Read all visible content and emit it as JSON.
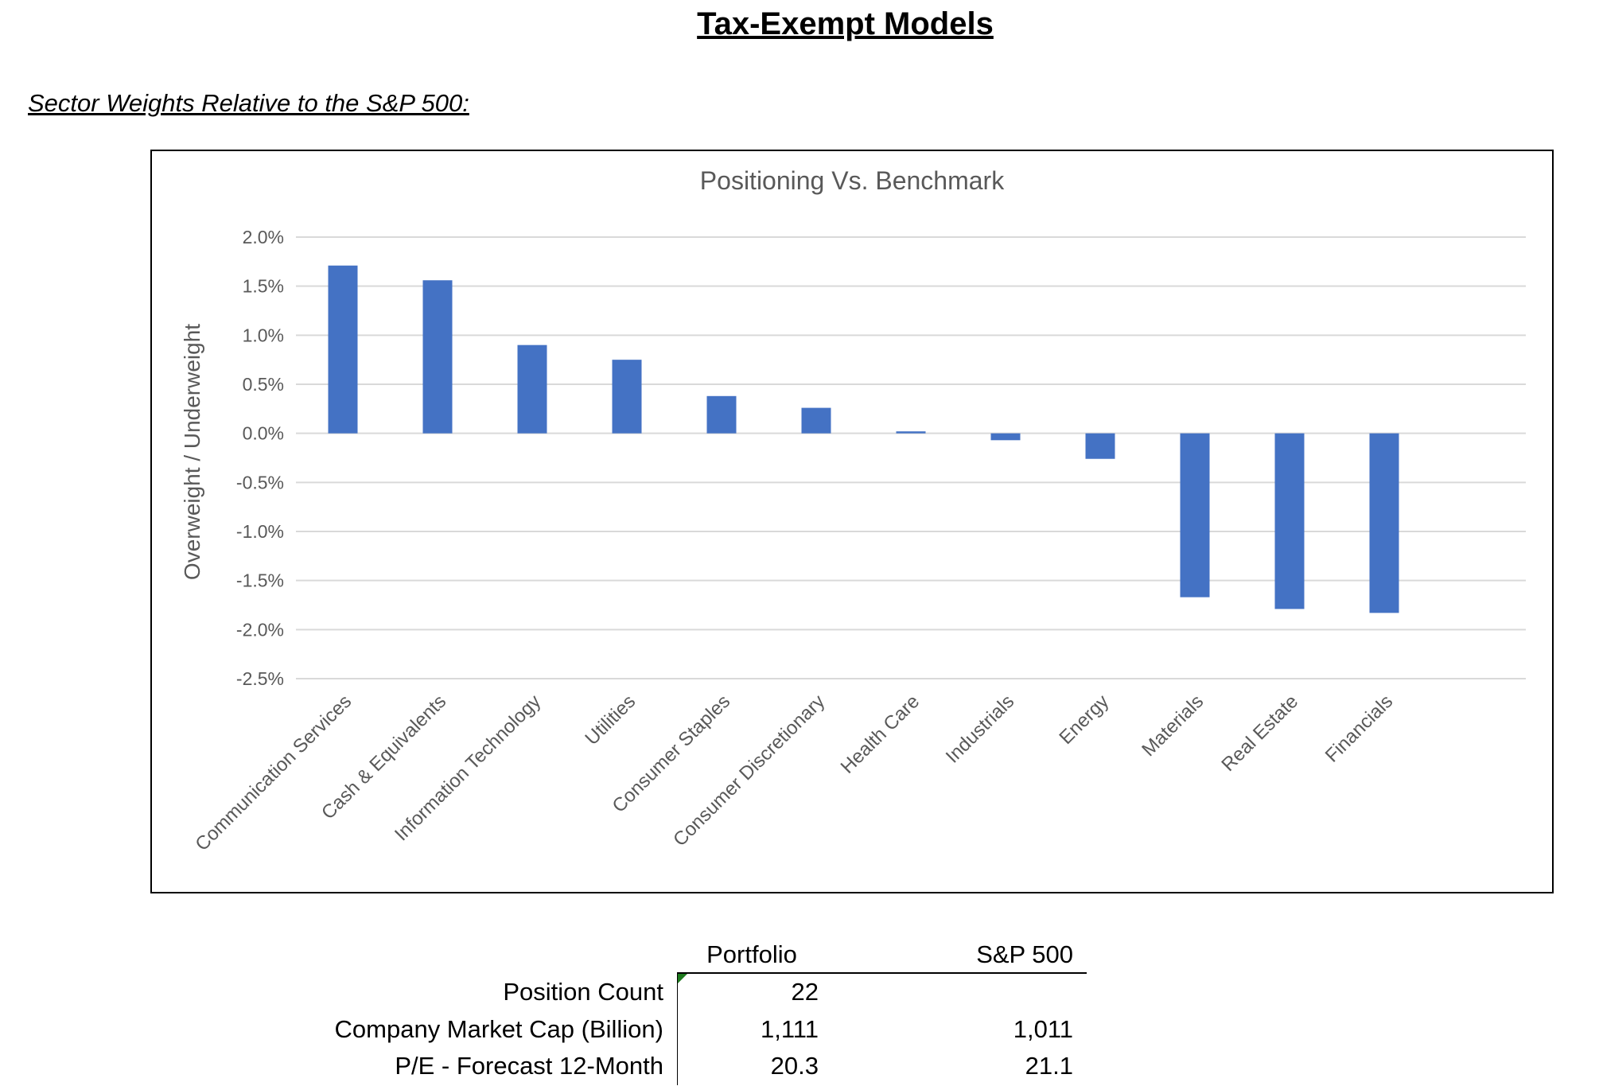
{
  "title": "Tax-Exempt Models",
  "subtitle": "Sector Weights Relative to the S&P 500:",
  "chart_data": {
    "type": "bar",
    "title": "Positioning Vs. Benchmark",
    "xlabel": "",
    "ylabel": "Overweight / Underweight",
    "ylim": [
      -2.5,
      2.0
    ],
    "yticks": [
      "2.0%",
      "1.5%",
      "1.0%",
      "0.5%",
      "0.0%",
      "-0.5%",
      "-1.0%",
      "-1.5%",
      "-2.0%",
      "-2.5%"
    ],
    "grid": true,
    "bar_color": "#4472C4",
    "categories": [
      "Communication Services",
      "Cash & Equivalents",
      "Information Technology",
      "Utilities",
      "Consumer Staples",
      "Consumer Discretionary",
      "Health Care",
      "Industrials",
      "Energy",
      "Materials",
      "Real Estate",
      "Financials"
    ],
    "values": [
      1.71,
      1.56,
      0.9,
      0.75,
      0.38,
      0.26,
      0.02,
      -0.07,
      -0.26,
      -1.67,
      -1.79,
      -1.83
    ]
  },
  "table": {
    "headers": [
      "Portfolio",
      "S&P 500"
    ],
    "rows": [
      {
        "label": "Position Count",
        "portfolio": "22",
        "sp500": ""
      },
      {
        "label": "Company Market Cap (Billion)",
        "portfolio": "1,111",
        "sp500": "1,011"
      },
      {
        "label": "P/E - Forecast 12-Month",
        "portfolio": "20.3",
        "sp500": "21.1"
      }
    ]
  }
}
